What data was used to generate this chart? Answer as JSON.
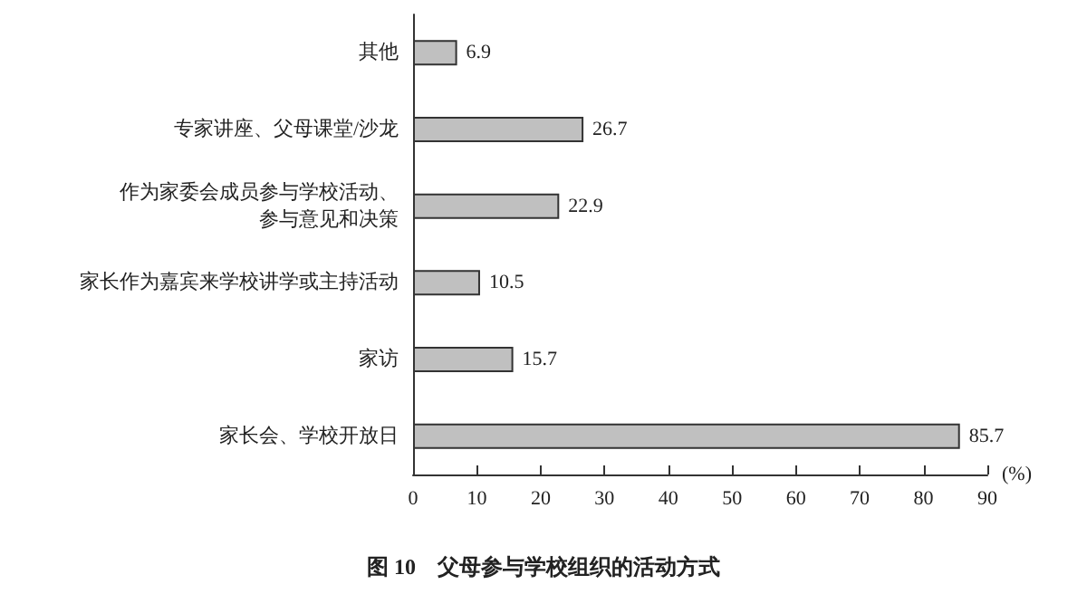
{
  "chart_data": {
    "type": "bar",
    "orientation": "horizontal",
    "title": "图 10　父母参与学校组织的活动方式",
    "xlabel": "(%)",
    "categories": [
      "其他",
      "专家讲座、父母课堂/沙龙",
      "作为家委会成员参与学校活动、参与意见和决策",
      "家长作为嘉宾来学校讲学或主持活动",
      "家访",
      "家长会、学校开放日"
    ],
    "values": [
      6.9,
      26.7,
      22.9,
      10.5,
      15.7,
      85.7
    ],
    "color": "#c0c0c0",
    "xlim": [
      0,
      90
    ],
    "xticks": [
      0,
      10,
      20,
      30,
      40,
      50,
      60,
      70,
      80,
      90
    ],
    "grid": false,
    "data_labels": true
  }
}
